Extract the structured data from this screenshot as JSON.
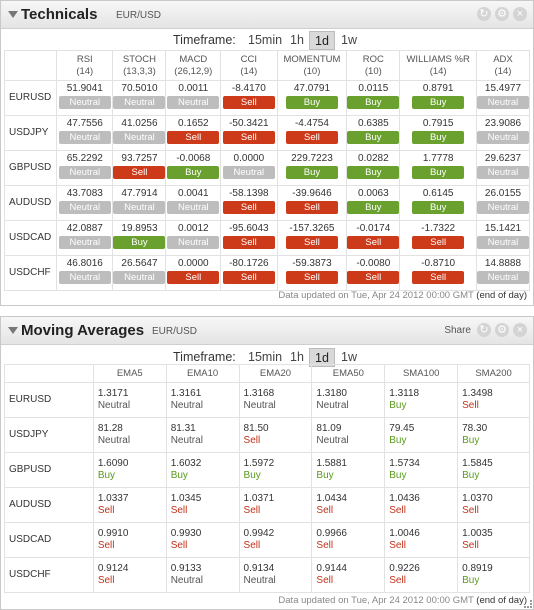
{
  "technicals": {
    "title": "Technicals",
    "pair": "EUR/USD",
    "timeframe_label": "Timeframe:",
    "timeframes": [
      "15min",
      "1h",
      "1d",
      "1w"
    ],
    "selected_timeframe": "1d",
    "columns": [
      {
        "name": "RSI",
        "params": "(14)"
      },
      {
        "name": "STOCH",
        "params": "(13,3,3)"
      },
      {
        "name": "MACD",
        "params": "(26,12,9)"
      },
      {
        "name": "CCI",
        "params": "(14)"
      },
      {
        "name": "MOMENTUM",
        "params": "(10)"
      },
      {
        "name": "ROC",
        "params": "(10)"
      },
      {
        "name": "WILLIAMS %R",
        "params": "(14)"
      },
      {
        "name": "ADX",
        "params": "(14)"
      }
    ],
    "rows": [
      {
        "symbol": "EURUSD",
        "cells": [
          {
            "value": "51.9041",
            "signal": "Neutral"
          },
          {
            "value": "70.5010",
            "signal": "Neutral"
          },
          {
            "value": "0.0011",
            "signal": "Neutral"
          },
          {
            "value": "-8.4170",
            "signal": "Sell"
          },
          {
            "value": "47.0791",
            "signal": "Buy"
          },
          {
            "value": "0.0115",
            "signal": "Buy"
          },
          {
            "value": "0.8791",
            "signal": "Buy"
          },
          {
            "value": "15.4977",
            "signal": "Neutral"
          }
        ]
      },
      {
        "symbol": "USDJPY",
        "cells": [
          {
            "value": "47.7556",
            "signal": "Neutral"
          },
          {
            "value": "41.0256",
            "signal": "Neutral"
          },
          {
            "value": "0.1652",
            "signal": "Sell"
          },
          {
            "value": "-50.3421",
            "signal": "Sell"
          },
          {
            "value": "-4.4754",
            "signal": "Sell"
          },
          {
            "value": "0.6385",
            "signal": "Buy"
          },
          {
            "value": "0.7915",
            "signal": "Buy"
          },
          {
            "value": "23.9086",
            "signal": "Neutral"
          }
        ]
      },
      {
        "symbol": "GBPUSD",
        "cells": [
          {
            "value": "65.2292",
            "signal": "Neutral"
          },
          {
            "value": "93.7257",
            "signal": "Sell"
          },
          {
            "value": "-0.0068",
            "signal": "Buy"
          },
          {
            "value": "0.0000",
            "signal": "Neutral"
          },
          {
            "value": "229.7223",
            "signal": "Buy"
          },
          {
            "value": "0.0282",
            "signal": "Buy"
          },
          {
            "value": "1.7778",
            "signal": "Buy"
          },
          {
            "value": "29.6237",
            "signal": "Neutral"
          }
        ]
      },
      {
        "symbol": "AUDUSD",
        "cells": [
          {
            "value": "43.7083",
            "signal": "Neutral"
          },
          {
            "value": "47.7914",
            "signal": "Neutral"
          },
          {
            "value": "0.0041",
            "signal": "Neutral"
          },
          {
            "value": "-58.1398",
            "signal": "Sell"
          },
          {
            "value": "-39.9646",
            "signal": "Sell"
          },
          {
            "value": "0.0063",
            "signal": "Buy"
          },
          {
            "value": "0.6145",
            "signal": "Buy"
          },
          {
            "value": "26.0155",
            "signal": "Neutral"
          }
        ]
      },
      {
        "symbol": "USDCAD",
        "cells": [
          {
            "value": "42.0887",
            "signal": "Neutral"
          },
          {
            "value": "19.8953",
            "signal": "Buy"
          },
          {
            "value": "0.0012",
            "signal": "Neutral"
          },
          {
            "value": "-95.6043",
            "signal": "Sell"
          },
          {
            "value": "-157.3265",
            "signal": "Sell"
          },
          {
            "value": "-0.0174",
            "signal": "Sell"
          },
          {
            "value": "-1.7322",
            "signal": "Sell"
          },
          {
            "value": "15.1421",
            "signal": "Neutral"
          }
        ]
      },
      {
        "symbol": "USDCHF",
        "cells": [
          {
            "value": "46.8016",
            "signal": "Neutral"
          },
          {
            "value": "26.5647",
            "signal": "Neutral"
          },
          {
            "value": "0.0000",
            "signal": "Sell"
          },
          {
            "value": "-80.1726",
            "signal": "Sell"
          },
          {
            "value": "-59.3873",
            "signal": "Sell"
          },
          {
            "value": "-0.0080",
            "signal": "Sell"
          },
          {
            "value": "-0.8710",
            "signal": "Sell"
          },
          {
            "value": "14.8888",
            "signal": "Neutral"
          }
        ]
      }
    ],
    "footer_text": "Data updated on Tue, Apr 24 2012 00:00 GMT",
    "footer_note": "(end of day)"
  },
  "moving_averages": {
    "title": "Moving Averages",
    "pair": "EUR/USD",
    "share_label": "Share",
    "timeframe_label": "Timeframe:",
    "timeframes": [
      "15min",
      "1h",
      "1d",
      "1w"
    ],
    "selected_timeframe": "1d",
    "columns": [
      "EMA5",
      "EMA10",
      "EMA20",
      "EMA50",
      "SMA100",
      "SMA200"
    ],
    "rows": [
      {
        "symbol": "EURUSD",
        "cells": [
          {
            "value": "1.3171",
            "signal": "Neutral"
          },
          {
            "value": "1.3161",
            "signal": "Neutral"
          },
          {
            "value": "1.3168",
            "signal": "Neutral"
          },
          {
            "value": "1.3180",
            "signal": "Neutral"
          },
          {
            "value": "1.3118",
            "signal": "Buy"
          },
          {
            "value": "1.3498",
            "signal": "Sell"
          }
        ]
      },
      {
        "symbol": "USDJPY",
        "cells": [
          {
            "value": "81.28",
            "signal": "Neutral"
          },
          {
            "value": "81.31",
            "signal": "Neutral"
          },
          {
            "value": "81.50",
            "signal": "Sell"
          },
          {
            "value": "81.09",
            "signal": "Neutral"
          },
          {
            "value": "79.45",
            "signal": "Buy"
          },
          {
            "value": "78.30",
            "signal": "Buy"
          }
        ]
      },
      {
        "symbol": "GBPUSD",
        "cells": [
          {
            "value": "1.6090",
            "signal": "Buy"
          },
          {
            "value": "1.6032",
            "signal": "Buy"
          },
          {
            "value": "1.5972",
            "signal": "Buy"
          },
          {
            "value": "1.5881",
            "signal": "Buy"
          },
          {
            "value": "1.5734",
            "signal": "Buy"
          },
          {
            "value": "1.5845",
            "signal": "Buy"
          }
        ]
      },
      {
        "symbol": "AUDUSD",
        "cells": [
          {
            "value": "1.0337",
            "signal": "Sell"
          },
          {
            "value": "1.0345",
            "signal": "Sell"
          },
          {
            "value": "1.0371",
            "signal": "Sell"
          },
          {
            "value": "1.0434",
            "signal": "Sell"
          },
          {
            "value": "1.0436",
            "signal": "Sell"
          },
          {
            "value": "1.0370",
            "signal": "Sell"
          }
        ]
      },
      {
        "symbol": "USDCAD",
        "cells": [
          {
            "value": "0.9910",
            "signal": "Sell"
          },
          {
            "value": "0.9930",
            "signal": "Sell"
          },
          {
            "value": "0.9942",
            "signal": "Sell"
          },
          {
            "value": "0.9966",
            "signal": "Sell"
          },
          {
            "value": "1.0046",
            "signal": "Sell"
          },
          {
            "value": "1.0035",
            "signal": "Sell"
          }
        ]
      },
      {
        "symbol": "USDCHF",
        "cells": [
          {
            "value": "0.9124",
            "signal": "Sell"
          },
          {
            "value": "0.9133",
            "signal": "Neutral"
          },
          {
            "value": "0.9134",
            "signal": "Neutral"
          },
          {
            "value": "0.9144",
            "signal": "Sell"
          },
          {
            "value": "0.9226",
            "signal": "Sell"
          },
          {
            "value": "0.8919",
            "signal": "Buy"
          }
        ]
      }
    ],
    "footer_text": "Data updated on Tue, Apr 24 2012 00:00 GMT",
    "footer_note": "(end of day)"
  },
  "colors": {
    "buy": "#6aa02d",
    "sell": "#cc3a1a",
    "neutral": "#bdbdbd"
  },
  "icons": {
    "refresh": "refresh-icon",
    "settings": "gear-icon",
    "close": "close-icon",
    "collapse": "collapse-arrow-icon"
  }
}
